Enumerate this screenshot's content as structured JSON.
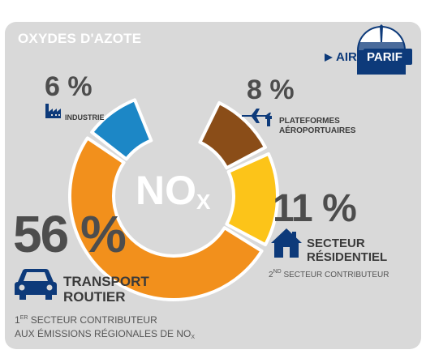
{
  "title": "OXYDES D'AZOTE",
  "logo": {
    "air": "AIR",
    "parif": "PARIF"
  },
  "center_label": {
    "main": "NO",
    "sub": "X"
  },
  "colors": {
    "card": "#d9d9d9",
    "industrie": "#1c87c6",
    "aeroportuaire": "#8a4d18",
    "residentiel": "#fcc419",
    "transport": "#f2901c",
    "navy": "#0d3a7a"
  },
  "annotations": {
    "industrie": {
      "pct": "6 %",
      "label": "INDUSTRIE",
      "icon": "factory-icon"
    },
    "aeroportuaire": {
      "pct": "8 %",
      "label_line1": "PLATEFORMES",
      "label_line2": "AÉROPORTUAIRES",
      "icon": "airplane-icon"
    },
    "residentiel": {
      "pct": "11 %",
      "label_line1": "SECTEUR",
      "label_line2": "RÉSIDENTIEL",
      "note_pre": "2",
      "note_sup": "ND",
      "note_post": " SECTEUR CONTRIBUTEUR",
      "icon": "house-icon"
    },
    "transport": {
      "pct": "56 %",
      "label_line1": "TRANSPORT",
      "label_line2": "ROUTIER",
      "note1_pre": "1",
      "note1_sup": "ER",
      "note1_post": " SECTEUR CONTRIBUTEUR",
      "note2_pre": "AUX ÉMISSIONS RÉGIONALES DE NO",
      "note2_sub": "X",
      "icon": "car-icon"
    }
  },
  "chart_data": {
    "type": "pie",
    "title": "OXYDES D'AZOTE",
    "slices": [
      {
        "label": "INDUSTRIE",
        "value": 6,
        "color": "#1c87c6"
      },
      {
        "label": "PLATEFORMES AÉROPORTUAIRES",
        "value": 8,
        "color": "#8a4d18"
      },
      {
        "label": "SECTEUR RÉSIDENTIEL",
        "value": 11,
        "color": "#fcc419"
      },
      {
        "label": "TRANSPORT ROUTIER",
        "value": 56,
        "color": "#f2901c"
      }
    ],
    "donut": true,
    "legend": "none"
  }
}
